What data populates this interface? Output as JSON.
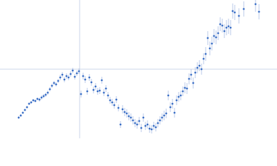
{
  "chart_data": {
    "type": "scatter",
    "x": [
      27,
      30,
      33,
      36,
      39,
      42,
      45,
      48,
      51,
      54,
      57,
      60,
      63,
      66,
      69,
      72,
      75,
      78,
      81,
      84,
      87,
      90,
      93,
      96,
      99,
      102,
      105,
      108,
      111,
      114,
      117,
      120,
      123,
      126,
      129,
      132,
      135,
      138,
      141,
      144,
      147,
      150,
      153,
      156,
      159,
      162,
      165,
      168,
      171,
      174,
      177,
      180,
      183,
      186,
      189,
      192,
      195,
      198,
      201,
      204,
      207,
      210,
      213,
      216,
      219,
      222,
      225,
      228,
      231,
      234,
      237,
      240,
      243,
      246,
      249,
      252,
      255,
      258,
      261,
      264,
      267,
      270,
      273,
      276,
      279,
      282,
      285,
      288,
      291,
      294,
      297,
      300,
      303,
      306,
      309,
      312,
      315,
      318,
      321,
      324,
      327,
      330,
      333,
      336,
      339,
      345,
      352,
      369,
      374
    ],
    "values": [
      30,
      33,
      37,
      41,
      45,
      50,
      52,
      55,
      54,
      57,
      56,
      59,
      61,
      63,
      66,
      71,
      76,
      80,
      78,
      83,
      88,
      92,
      85,
      90,
      88,
      93,
      98,
      89,
      94,
      97,
      64,
      90,
      85,
      68,
      88,
      81,
      70,
      75,
      68,
      69,
      84,
      66,
      72,
      62,
      55,
      52,
      48,
      56,
      44,
      20,
      42,
      38,
      36,
      32,
      30,
      26,
      22,
      20,
      25,
      15,
      30,
      18,
      20,
      14,
      13,
      18,
      16,
      22,
      26,
      30,
      33,
      36,
      62,
      45,
      50,
      37,
      55,
      60,
      62,
      68,
      73,
      72,
      86,
      92,
      80,
      95,
      102,
      105,
      100,
      115,
      122,
      145,
      130,
      137,
      148,
      146,
      152,
      165,
      163,
      155,
      160,
      162,
      160,
      184,
      182,
      177,
      187,
      194,
      183
    ],
    "errors": [
      2,
      2,
      2,
      2,
      2,
      2,
      2,
      2,
      2,
      2,
      3,
      3,
      3,
      3,
      3,
      3,
      3,
      3,
      3,
      3,
      4,
      4,
      4,
      4,
      4,
      4,
      4,
      4,
      4,
      4,
      5,
      5,
      5,
      5,
      5,
      5,
      5,
      5,
      5,
      5,
      5,
      5,
      5,
      5,
      5,
      5,
      5,
      5,
      5,
      5,
      6,
      6,
      6,
      6,
      6,
      6,
      6,
      6,
      6,
      6,
      6,
      6,
      6,
      6,
      6,
      6,
      6,
      6,
      6,
      6,
      7,
      7,
      7,
      7,
      7,
      7,
      7,
      7,
      7,
      7,
      8,
      8,
      8,
      8,
      8,
      8,
      8,
      8,
      8,
      8,
      10,
      10,
      10,
      10,
      10,
      10,
      10,
      10,
      10,
      10,
      11,
      11,
      11,
      11,
      11,
      11,
      11,
      11,
      11
    ],
    "color": "#3b6fc6",
    "error_color": "#a9bde3",
    "xlim": [
      0,
      400
    ],
    "ylim": [
      0,
      200
    ],
    "reference_lines": {
      "x": 115,
      "y": 100,
      "color": "#cbd6ea"
    }
  }
}
